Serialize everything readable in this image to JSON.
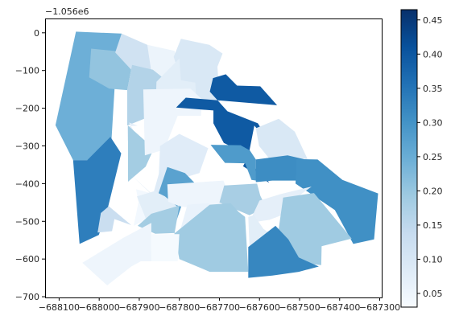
{
  "chart_data": {
    "type": "choropleth",
    "x_offset_label": "",
    "y_offset_label": "−1.056e6",
    "xlim": [
      -688135,
      -687295
    ],
    "ylim": [
      -702,
      38
    ],
    "x_ticks": [
      -688100,
      -688000,
      -687900,
      -687800,
      -687700,
      -687600,
      -687500,
      -687400,
      -687300
    ],
    "x_tick_labels": [
      "−688100",
      "−688000",
      "−687900",
      "−687800",
      "−687700",
      "−687600",
      "−687500",
      "−687400",
      "−687300"
    ],
    "y_ticks": [
      0,
      -100,
      -200,
      -300,
      -400,
      -500,
      -600,
      -700
    ],
    "y_tick_labels": [
      "0",
      "−100",
      "−200",
      "−300",
      "−400",
      "−500",
      "−600",
      "−700"
    ],
    "colorbar": {
      "cmap": "Blues",
      "vmin": 0.03,
      "vmax": 0.465,
      "ticks": [
        0.05,
        0.1,
        0.15,
        0.2,
        0.25,
        0.3,
        0.35,
        0.4,
        0.45
      ],
      "tick_labels": [
        "0.05",
        "0.10",
        "0.15",
        "0.20",
        "0.25",
        "0.30",
        "0.35",
        "0.40",
        "0.45"
      ]
    },
    "regions": [
      {
        "value": 0.245,
        "coords": [
          [
            -688058,
            3
          ],
          [
            -687944,
            -2
          ],
          [
            -687960,
            -118
          ],
          [
            -687972,
            -332
          ],
          [
            -688030,
            -338
          ],
          [
            -688065,
            -338
          ],
          [
            -688109,
            -245
          ]
        ]
      },
      {
        "value": 0.335,
        "coords": [
          [
            -688065,
            -338
          ],
          [
            -688030,
            -338
          ],
          [
            -687972,
            -276
          ],
          [
            -687945,
            -320
          ],
          [
            -687982,
            -480
          ],
          [
            -688001,
            -536
          ],
          [
            -688049,
            -560
          ]
        ]
      },
      {
        "value": 0.205,
        "coords": [
          [
            -688020,
            -42
          ],
          [
            -687942,
            -50
          ],
          [
            -687918,
            -85
          ],
          [
            -687930,
            -152
          ],
          [
            -687975,
            -148
          ],
          [
            -688025,
            -118
          ]
        ]
      },
      {
        "value": 0.115,
        "coords": [
          [
            -687944,
            -2
          ],
          [
            -687880,
            -32
          ],
          [
            -687860,
            -98
          ],
          [
            -687920,
            -98
          ],
          [
            -687960,
            -52
          ]
        ]
      },
      {
        "value": 0.055,
        "coords": [
          [
            -687880,
            -32
          ],
          [
            -687812,
            -48
          ],
          [
            -687787,
            -130
          ],
          [
            -687860,
            -122
          ],
          [
            -687869,
            -110
          ]
        ]
      },
      {
        "value": 0.165,
        "coords": [
          [
            -687930,
            -152
          ],
          [
            -687918,
            -85
          ],
          [
            -687866,
            -98
          ],
          [
            -687840,
            -120
          ],
          [
            -687760,
            -146
          ],
          [
            -687827,
            -226
          ],
          [
            -687883,
            -226
          ],
          [
            -687930,
            -246
          ]
        ]
      },
      {
        "value": 0.095,
        "coords": [
          [
            -687796,
            -16
          ],
          [
            -687725,
            -32
          ],
          [
            -687692,
            -55
          ],
          [
            -687705,
            -90
          ],
          [
            -687698,
            -200
          ],
          [
            -687738,
            -186
          ],
          [
            -687762,
            -170
          ],
          [
            -687790,
            -146
          ],
          [
            -687814,
            -64
          ]
        ]
      },
      {
        "value": 0.075,
        "coords": [
          [
            -687857,
            -130
          ],
          [
            -687800,
            -68
          ],
          [
            -687796,
            -126
          ],
          [
            -687760,
            -132
          ],
          [
            -687758,
            -180
          ],
          [
            -687804,
            -205
          ],
          [
            -687860,
            -222
          ]
        ]
      },
      {
        "value": 0.07,
        "coords": [
          [
            -687904,
            -246
          ],
          [
            -687930,
            -248
          ],
          [
            -687929,
            -286
          ],
          [
            -687889,
            -306
          ],
          [
            -687926,
            -238
          ]
        ]
      },
      {
        "value": 0.185,
        "coords": [
          [
            -687928,
            -246
          ],
          [
            -687886,
            -286
          ],
          [
            -687874,
            -205
          ],
          [
            -687830,
            -228
          ],
          [
            -687884,
            -355
          ],
          [
            -687928,
            -395
          ]
        ]
      },
      {
        "value": 0.05,
        "coords": [
          [
            -687890,
            -150
          ],
          [
            -687772,
            -148
          ],
          [
            -687744,
            -176
          ],
          [
            -687746,
            -220
          ],
          [
            -687804,
            -220
          ],
          [
            -687838,
            -310
          ],
          [
            -687886,
            -325
          ]
        ]
      },
      {
        "value": 0.08,
        "coords": [
          [
            -687848,
            -300
          ],
          [
            -687800,
            -268
          ],
          [
            -687728,
            -306
          ],
          [
            -687750,
            -372
          ],
          [
            -687800,
            -388
          ],
          [
            -687852,
            -395
          ]
        ]
      },
      {
        "value": 0.085,
        "coords": [
          [
            -687922,
            -375
          ],
          [
            -687866,
            -430
          ],
          [
            -687848,
            -362
          ],
          [
            -687834,
            -395
          ],
          [
            -687858,
            -440
          ]
        ]
      },
      {
        "value": 0.04,
        "coords": [
          [
            -687908,
            -415
          ],
          [
            -687872,
            -425
          ],
          [
            -687870,
            -472
          ],
          [
            -687866,
            -486
          ],
          [
            -687914,
            -512
          ],
          [
            -687902,
            -450
          ]
        ]
      },
      {
        "value": 0.395,
        "coords": [
          [
            -687784,
            -172
          ],
          [
            -687808,
            -198
          ],
          [
            -687715,
            -206
          ],
          [
            -687715,
            -240
          ],
          [
            -687689,
            -292
          ],
          [
            -687639,
            -318
          ],
          [
            -687632,
            -340
          ],
          [
            -687585,
            -382
          ],
          [
            -687576,
            -398
          ],
          [
            -687641,
            -354
          ],
          [
            -687628,
            -328
          ],
          [
            -687613,
            -246
          ],
          [
            -687570,
            -298
          ],
          [
            -687604,
            -240
          ],
          [
            -687680,
            -208
          ],
          [
            -687724,
            -156
          ],
          [
            -687716,
            -120
          ],
          [
            -687684,
            -110
          ],
          [
            -687656,
            -140
          ],
          [
            -687598,
            -142
          ],
          [
            -687556,
            -192
          ]
        ]
      },
      {
        "value": 0.285,
        "coords": [
          [
            -687722,
            -297
          ],
          [
            -687686,
            -345
          ],
          [
            -687636,
            -346
          ],
          [
            -687620,
            -390
          ],
          [
            -687594,
            -394
          ],
          [
            -687609,
            -366
          ],
          [
            -687609,
            -336
          ],
          [
            -687624,
            -312
          ],
          [
            -687647,
            -298
          ]
        ]
      },
      {
        "value": 0.095,
        "coords": [
          [
            -687609,
            -253
          ],
          [
            -687552,
            -228
          ],
          [
            -687512,
            -262
          ],
          [
            -687480,
            -335
          ],
          [
            -687576,
            -333
          ],
          [
            -687601,
            -300
          ]
        ]
      },
      {
        "value": 0.31,
        "coords": [
          [
            -687609,
            -336
          ],
          [
            -687530,
            -325
          ],
          [
            -687490,
            -335
          ],
          [
            -687450,
            -398
          ],
          [
            -687500,
            -392
          ],
          [
            -687568,
            -392
          ],
          [
            -687609,
            -396
          ]
        ]
      },
      {
        "value": 0.305,
        "coords": [
          [
            -687508,
            -335
          ],
          [
            -687455,
            -336
          ],
          [
            -687393,
            -390
          ],
          [
            -687304,
            -426
          ],
          [
            -687314,
            -548
          ],
          [
            -687366,
            -560
          ],
          [
            -687412,
            -470
          ],
          [
            -687510,
            -400
          ]
        ]
      },
      {
        "value": 0.27,
        "coords": [
          [
            -687830,
            -356
          ],
          [
            -687786,
            -372
          ],
          [
            -687740,
            -422
          ],
          [
            -687730,
            -452
          ],
          [
            -687795,
            -460
          ],
          [
            -687814,
            -520
          ],
          [
            -687838,
            -490
          ],
          [
            -687866,
            -470
          ]
        ]
      },
      {
        "value": 0.075,
        "coords": [
          [
            -687862,
            -420
          ],
          [
            -687836,
            -434
          ],
          [
            -687806,
            -460
          ],
          [
            -687844,
            -490
          ],
          [
            -687881,
            -500
          ],
          [
            -687906,
            -434
          ]
        ]
      },
      {
        "value": 0.05,
        "coords": [
          [
            -687830,
            -402
          ],
          [
            -687690,
            -392
          ],
          [
            -687672,
            -440
          ],
          [
            -687694,
            -470
          ],
          [
            -687730,
            -470
          ],
          [
            -687800,
            -460
          ],
          [
            -687828,
            -448
          ]
        ]
      },
      {
        "value": 0.18,
        "coords": [
          [
            -687688,
            -405
          ],
          [
            -687606,
            -400
          ],
          [
            -687598,
            -432
          ],
          [
            -687584,
            -462
          ],
          [
            -687625,
            -484
          ],
          [
            -687700,
            -450
          ]
        ]
      },
      {
        "value": 0.07,
        "coords": [
          [
            -687600,
            -445
          ],
          [
            -687548,
            -428
          ],
          [
            -687470,
            -408
          ],
          [
            -687505,
            -435
          ],
          [
            -687540,
            -482
          ],
          [
            -687575,
            -496
          ],
          [
            -687626,
            -504
          ]
        ]
      },
      {
        "value": 0.185,
        "coords": [
          [
            -687870,
            -480
          ],
          [
            -687800,
            -458
          ],
          [
            -687814,
            -545
          ],
          [
            -687780,
            -530
          ],
          [
            -687860,
            -533
          ],
          [
            -687904,
            -512
          ]
        ]
      },
      {
        "value": 0.06,
        "coords": [
          [
            -687780,
            -456
          ],
          [
            -687728,
            -452
          ],
          [
            -687712,
            -470
          ],
          [
            -687695,
            -520
          ],
          [
            -687728,
            -530
          ],
          [
            -687800,
            -532
          ]
        ]
      },
      {
        "value": 0.19,
        "coords": [
          [
            -687724,
            -456
          ],
          [
            -687672,
            -452
          ],
          [
            -687652,
            -475
          ],
          [
            -687636,
            -488
          ],
          [
            -687628,
            -634
          ],
          [
            -687724,
            -634
          ],
          [
            -687800,
            -600
          ],
          [
            -687812,
            -532
          ]
        ]
      },
      {
        "value": 0.075,
        "coords": [
          [
            -687628,
            -488
          ],
          [
            -687614,
            -484
          ],
          [
            -687590,
            -520
          ],
          [
            -687556,
            -546
          ],
          [
            -687538,
            -566
          ],
          [
            -687584,
            -568
          ],
          [
            -687600,
            -566
          ],
          [
            -687625,
            -568
          ]
        ]
      },
      {
        "value": 0.19,
        "coords": [
          [
            -687541,
            -437
          ],
          [
            -687464,
            -425
          ],
          [
            -687370,
            -546
          ],
          [
            -687445,
            -566
          ],
          [
            -687446,
            -616
          ],
          [
            -687501,
            -610
          ],
          [
            -687535,
            -562
          ],
          [
            -687553,
            -528
          ]
        ]
      },
      {
        "value": 0.32,
        "coords": [
          [
            -687560,
            -512
          ],
          [
            -687528,
            -548
          ],
          [
            -687502,
            -596
          ],
          [
            -687452,
            -620
          ],
          [
            -687502,
            -634
          ],
          [
            -687568,
            -644
          ],
          [
            -687628,
            -650
          ],
          [
            -687628,
            -568
          ]
        ]
      },
      {
        "value": 0.13,
        "coords": [
          [
            -688004,
            -530
          ],
          [
            -687968,
            -526
          ],
          [
            -687962,
            -494
          ],
          [
            -687920,
            -510
          ],
          [
            -687976,
            -460
          ],
          [
            -687996,
            -478
          ]
        ]
      },
      {
        "value": 0.05,
        "coords": [
          [
            -687940,
            -544
          ],
          [
            -687870,
            -504
          ],
          [
            -687870,
            -606
          ],
          [
            -687896,
            -606
          ],
          [
            -687920,
            -620
          ],
          [
            -687980,
            -670
          ],
          [
            -688042,
            -610
          ]
        ]
      },
      {
        "value": 0.035,
        "coords": [
          [
            -687871,
            -534
          ],
          [
            -687800,
            -534
          ],
          [
            -687804,
            -606
          ],
          [
            -687870,
            -606
          ]
        ]
      }
    ]
  }
}
